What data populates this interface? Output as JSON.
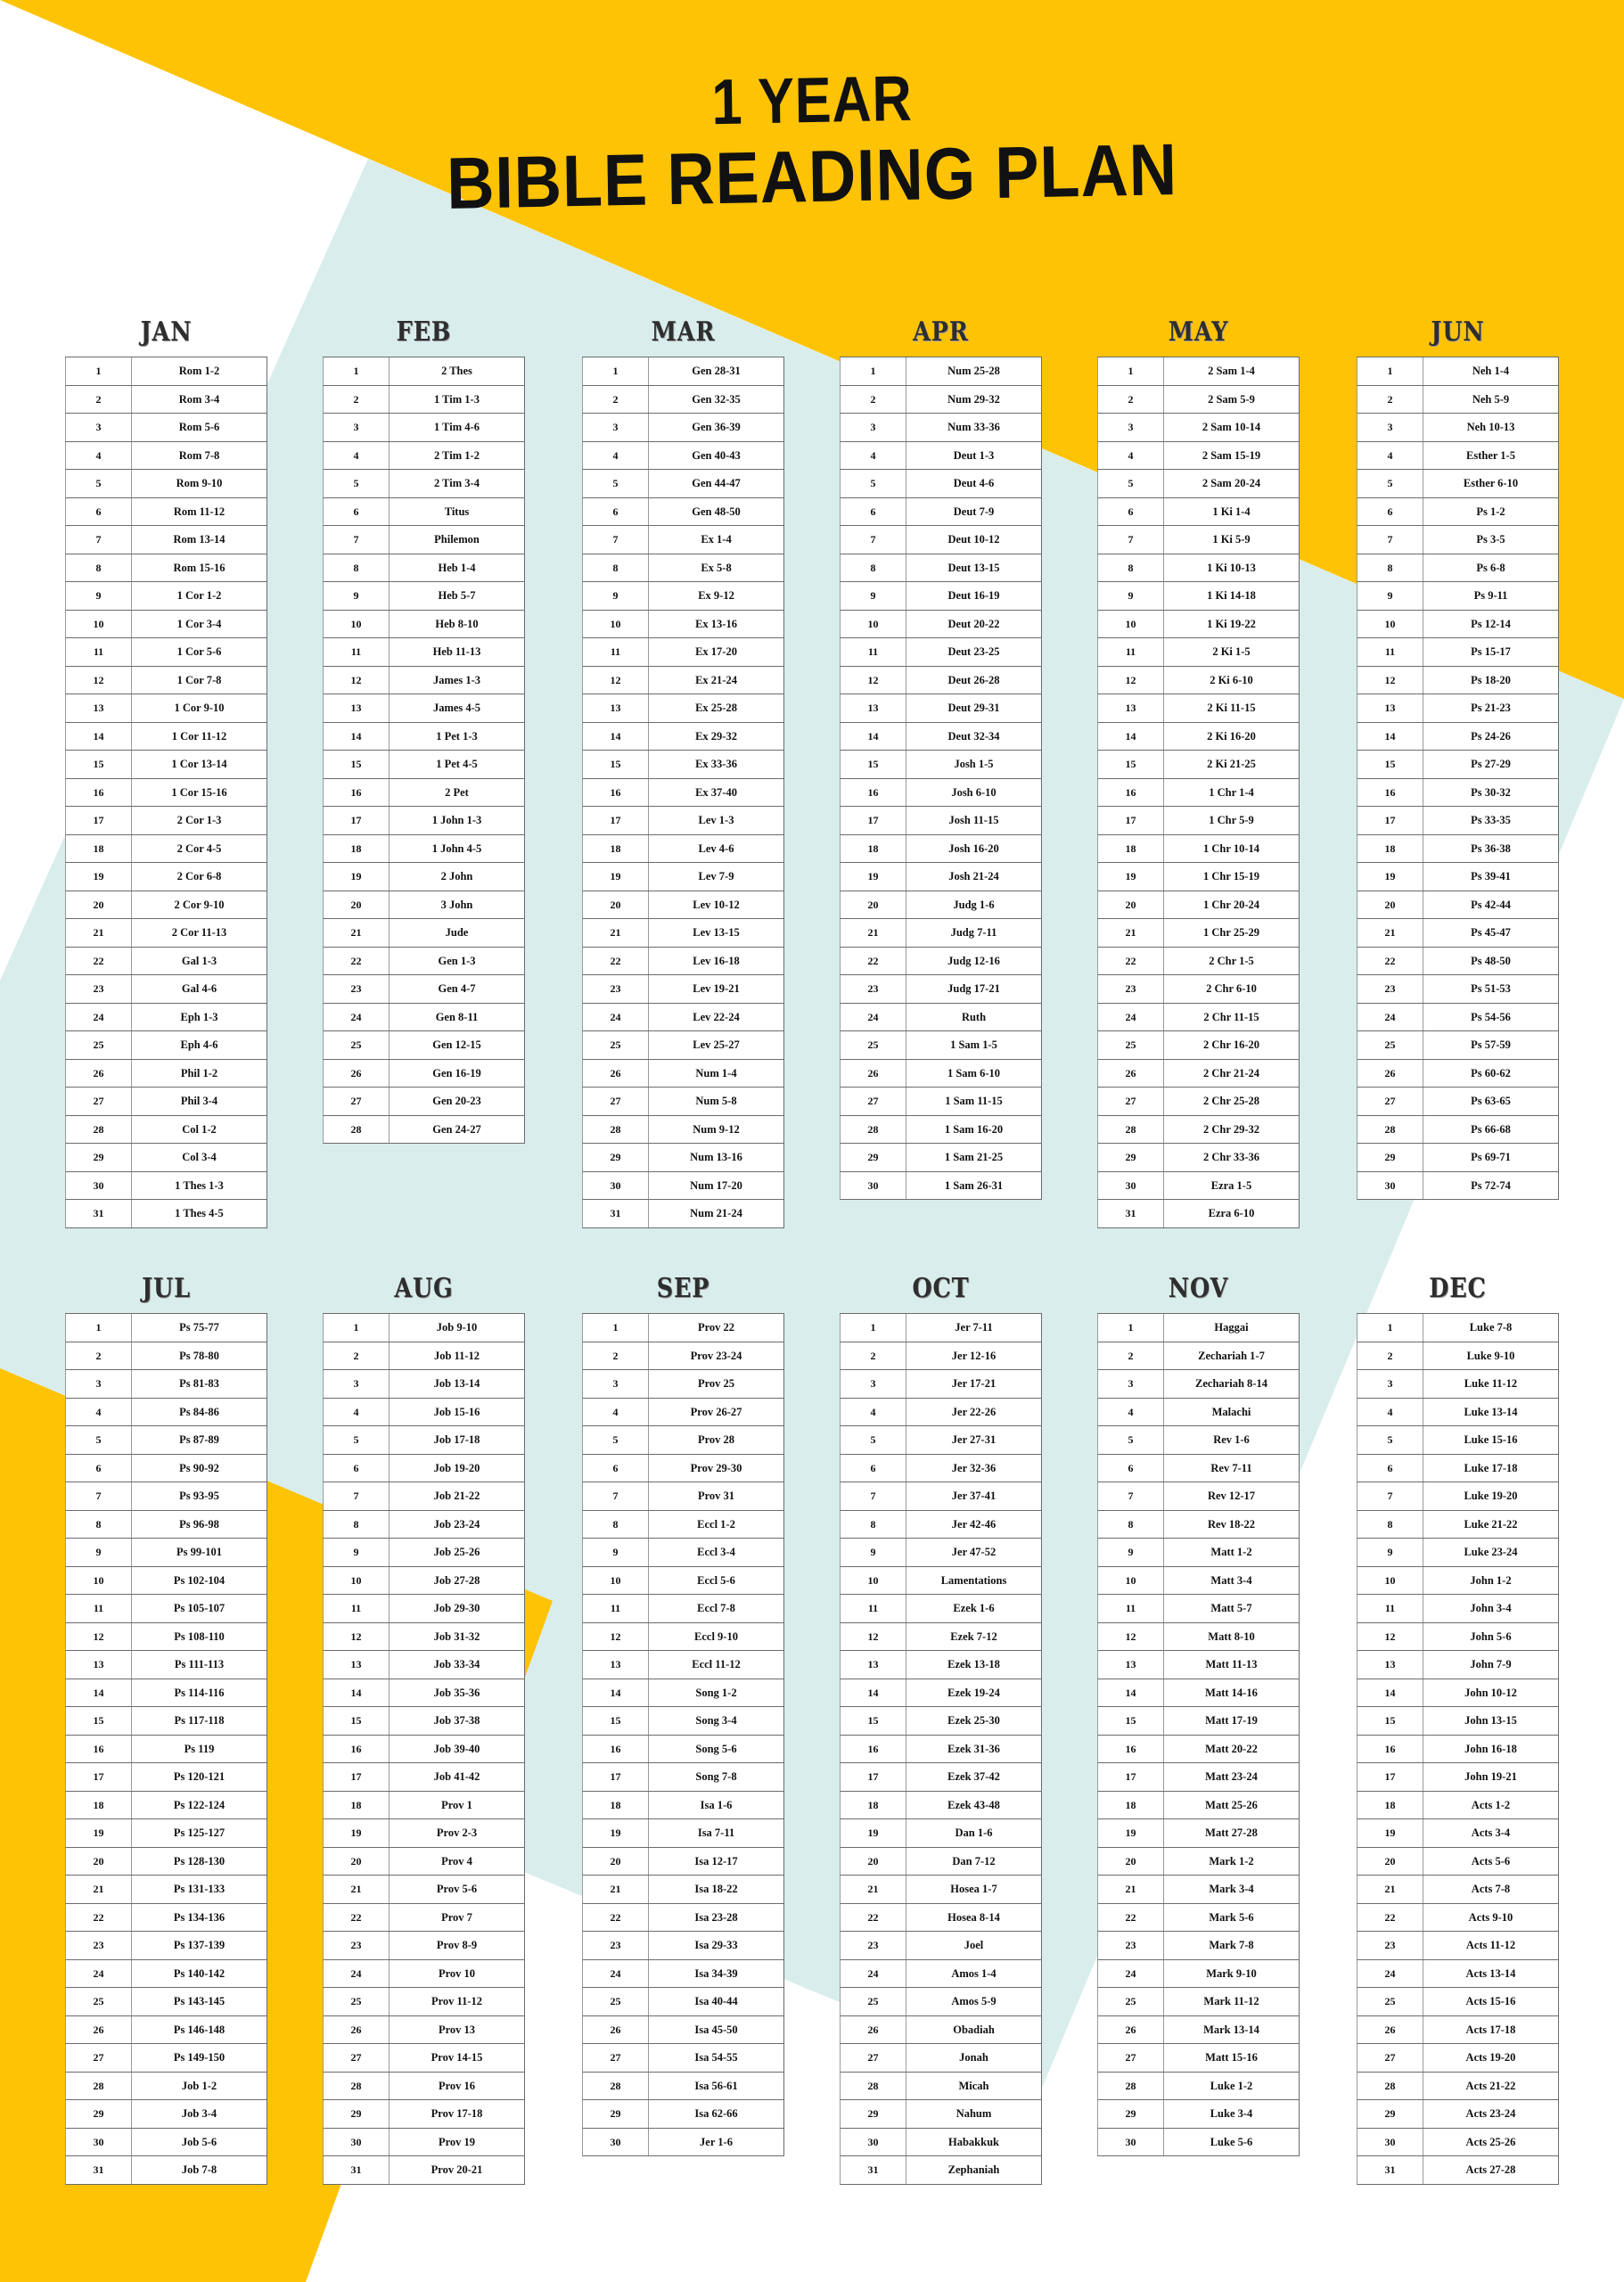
{
  "colors": {
    "yellow": "#FFC305",
    "teal": "#D9EEEC",
    "white": "#FFFFFF",
    "text": "#111111"
  },
  "title": {
    "line1": "1 YEAR",
    "line2": "BIBLE READING PLAN"
  },
  "months": [
    {
      "name": "JAN",
      "readings": [
        "Rom 1-2",
        "Rom 3-4",
        "Rom 5-6",
        "Rom 7-8",
        "Rom 9-10",
        "Rom 11-12",
        "Rom 13-14",
        "Rom 15-16",
        "1 Cor 1-2",
        "1 Cor 3-4",
        "1 Cor 5-6",
        "1 Cor 7-8",
        "1 Cor 9-10",
        "1 Cor 11-12",
        "1 Cor 13-14",
        "1 Cor 15-16",
        "2 Cor 1-3",
        "2 Cor 4-5",
        "2 Cor 6-8",
        "2 Cor 9-10",
        "2 Cor 11-13",
        "Gal 1-3",
        "Gal 4-6",
        "Eph 1-3",
        "Eph 4-6",
        "Phil 1-2",
        "Phil 3-4",
        "Col 1-2",
        "Col 3-4",
        "1 Thes 1-3",
        "1 Thes 4-5"
      ]
    },
    {
      "name": "FEB",
      "readings": [
        "2 Thes",
        "1 Tim 1-3",
        "1 Tim 4-6",
        "2 Tim 1-2",
        "2 Tim 3-4",
        "Titus",
        "Philemon",
        "Heb 1-4",
        "Heb 5-7",
        "Heb 8-10",
        "Heb 11-13",
        "James 1-3",
        "James 4-5",
        "1 Pet 1-3",
        "1 Pet 4-5",
        "2 Pet",
        "1 John 1-3",
        "1 John 4-5",
        "2 John",
        "3 John",
        "Jude",
        "Gen 1-3",
        "Gen 4-7",
        "Gen 8-11",
        "Gen 12-15",
        "Gen 16-19",
        "Gen 20-23",
        "Gen 24-27"
      ]
    },
    {
      "name": "MAR",
      "readings": [
        "Gen 28-31",
        "Gen 32-35",
        "Gen 36-39",
        "Gen 40-43",
        "Gen 44-47",
        "Gen 48-50",
        "Ex 1-4",
        "Ex 5-8",
        "Ex 9-12",
        "Ex 13-16",
        "Ex 17-20",
        "Ex 21-24",
        "Ex 25-28",
        "Ex 29-32",
        "Ex 33-36",
        "Ex 37-40",
        "Lev 1-3",
        "Lev 4-6",
        "Lev 7-9",
        "Lev 10-12",
        "Lev 13-15",
        "Lev 16-18",
        "Lev 19-21",
        "Lev 22-24",
        "Lev 25-27",
        "Num 1-4",
        "Num 5-8",
        "Num 9-12",
        "Num 13-16",
        "Num 17-20",
        "Num 21-24"
      ]
    },
    {
      "name": "APR",
      "readings": [
        "Num 25-28",
        "Num 29-32",
        "Num 33-36",
        "Deut 1-3",
        "Deut 4-6",
        "Deut 7-9",
        "Deut 10-12",
        "Deut 13-15",
        "Deut 16-19",
        "Deut 20-22",
        "Deut 23-25",
        "Deut 26-28",
        "Deut 29-31",
        "Deut 32-34",
        "Josh 1-5",
        "Josh 6-10",
        "Josh 11-15",
        "Josh 16-20",
        "Josh 21-24",
        "Judg 1-6",
        "Judg 7-11",
        "Judg 12-16",
        "Judg 17-21",
        "Ruth",
        "1 Sam 1-5",
        "1 Sam 6-10",
        "1 Sam 11-15",
        "1 Sam 16-20",
        "1 Sam 21-25",
        "1 Sam 26-31"
      ]
    },
    {
      "name": "MAY",
      "readings": [
        "2 Sam 1-4",
        "2 Sam 5-9",
        "2 Sam 10-14",
        "2 Sam 15-19",
        "2 Sam 20-24",
        "1 Ki 1-4",
        "1 Ki 5-9",
        "1 Ki 10-13",
        "1 Ki 14-18",
        "1 Ki 19-22",
        "2 Ki 1-5",
        "2 Ki 6-10",
        "2 Ki 11-15",
        "2 Ki 16-20",
        "2 Ki 21-25",
        "1 Chr 1-4",
        "1 Chr 5-9",
        "1 Chr 10-14",
        "1 Chr 15-19",
        "1 Chr 20-24",
        "1 Chr 25-29",
        "2 Chr 1-5",
        "2 Chr 6-10",
        "2 Chr 11-15",
        "2 Chr 16-20",
        "2 Chr 21-24",
        "2 Chr 25-28",
        "2 Chr 29-32",
        "2 Chr 33-36",
        "Ezra 1-5",
        "Ezra 6-10"
      ]
    },
    {
      "name": "JUN",
      "readings": [
        "Neh 1-4",
        "Neh 5-9",
        "Neh 10-13",
        "Esther 1-5",
        "Esther 6-10",
        "Ps 1-2",
        "Ps 3-5",
        "Ps 6-8",
        "Ps 9-11",
        "Ps 12-14",
        "Ps 15-17",
        "Ps 18-20",
        "Ps 21-23",
        "Ps 24-26",
        "Ps 27-29",
        "Ps 30-32",
        "Ps 33-35",
        "Ps 36-38",
        "Ps 39-41",
        "Ps 42-44",
        "Ps 45-47",
        "Ps 48-50",
        "Ps 51-53",
        "Ps 54-56",
        "Ps 57-59",
        "Ps 60-62",
        "Ps 63-65",
        "Ps 66-68",
        "Ps 69-71",
        "Ps 72-74"
      ]
    },
    {
      "name": "JUL",
      "readings": [
        "Ps 75-77",
        "Ps 78-80",
        "Ps 81-83",
        "Ps 84-86",
        "Ps 87-89",
        "Ps 90-92",
        "Ps 93-95",
        "Ps 96-98",
        "Ps 99-101",
        "Ps 102-104",
        "Ps 105-107",
        "Ps 108-110",
        "Ps 111-113",
        "Ps 114-116",
        "Ps 117-118",
        "Ps 119",
        "Ps 120-121",
        "Ps 122-124",
        "Ps 125-127",
        "Ps 128-130",
        "Ps 131-133",
        "Ps 134-136",
        "Ps 137-139",
        "Ps 140-142",
        "Ps 143-145",
        "Ps 146-148",
        "Ps 149-150",
        "Job 1-2",
        "Job 3-4",
        "Job 5-6",
        "Job 7-8"
      ]
    },
    {
      "name": "AUG",
      "readings": [
        "Job 9-10",
        "Job 11-12",
        "Job 13-14",
        "Job 15-16",
        "Job 17-18",
        "Job 19-20",
        "Job 21-22",
        "Job 23-24",
        "Job 25-26",
        "Job 27-28",
        "Job 29-30",
        "Job 31-32",
        "Job 33-34",
        "Job 35-36",
        "Job 37-38",
        "Job 39-40",
        "Job 41-42",
        "Prov 1",
        "Prov 2-3",
        "Prov 4",
        "Prov 5-6",
        "Prov 7",
        "Prov 8-9",
        "Prov 10",
        "Prov 11-12",
        "Prov 13",
        "Prov 14-15",
        "Prov 16",
        "Prov 17-18",
        "Prov 19",
        "Prov 20-21"
      ]
    },
    {
      "name": "SEP",
      "readings": [
        "Prov 22",
        "Prov 23-24",
        "Prov 25",
        "Prov 26-27",
        "Prov 28",
        "Prov 29-30",
        "Prov 31",
        "Eccl 1-2",
        "Eccl 3-4",
        "Eccl 5-6",
        "Eccl 7-8",
        "Eccl 9-10",
        "Eccl 11-12",
        "Song 1-2",
        "Song 3-4",
        "Song 5-6",
        "Song 7-8",
        "Isa 1-6",
        "Isa 7-11",
        "Isa 12-17",
        "Isa 18-22",
        "Isa 23-28",
        "Isa 29-33",
        "Isa 34-39",
        "Isa 40-44",
        "Isa 45-50",
        "Isa 54-55",
        "Isa 56-61",
        "Isa 62-66",
        "Jer 1-6"
      ]
    },
    {
      "name": "OCT",
      "readings": [
        "Jer 7-11",
        "Jer 12-16",
        "Jer 17-21",
        "Jer 22-26",
        "Jer 27-31",
        "Jer 32-36",
        "Jer 37-41",
        "Jer 42-46",
        "Jer 47-52",
        "Lamentations",
        "Ezek 1-6",
        "Ezek 7-12",
        "Ezek 13-18",
        "Ezek 19-24",
        "Ezek 25-30",
        "Ezek 31-36",
        "Ezek 37-42",
        "Ezek 43-48",
        "Dan 1-6",
        "Dan 7-12",
        "Hosea 1-7",
        "Hosea 8-14",
        "Joel",
        "Amos 1-4",
        "Amos 5-9",
        "Obadiah",
        "Jonah",
        "Micah",
        "Nahum",
        "Habakkuk",
        "Zephaniah"
      ]
    },
    {
      "name": "NOV",
      "readings": [
        "Haggai",
        "Zechariah 1-7",
        "Zechariah 8-14",
        "Malachi",
        "Rev 1-6",
        "Rev 7-11",
        "Rev 12-17",
        "Rev 18-22",
        "Matt 1-2",
        "Matt 3-4",
        "Matt 5-7",
        "Matt 8-10",
        "Matt 11-13",
        "Matt 14-16",
        "Matt 17-19",
        "Matt 20-22",
        "Matt 23-24",
        "Matt 25-26",
        "Matt 27-28",
        "Mark 1-2",
        "Mark 3-4",
        "Mark 5-6",
        "Mark 7-8",
        "Mark 9-10",
        "Mark 11-12",
        "Mark 13-14",
        "Matt 15-16",
        "Luke 1-2",
        "Luke 3-4",
        "Luke 5-6"
      ]
    },
    {
      "name": "DEC",
      "readings": [
        "Luke 7-8",
        "Luke 9-10",
        "Luke 11-12",
        "Luke 13-14",
        "Luke 15-16",
        "Luke 17-18",
        "Luke 19-20",
        "Luke 21-22",
        "Luke 23-24",
        "John 1-2",
        "John 3-4",
        "John 5-6",
        "John 7-9",
        "John 10-12",
        "John 13-15",
        "John 16-18",
        "John 19-21",
        "Acts 1-2",
        "Acts 3-4",
        "Acts 5-6",
        "Acts 7-8",
        "Acts 9-10",
        "Acts 11-12",
        "Acts 13-14",
        "Acts 15-16",
        "Acts 17-18",
        "Acts 19-20",
        "Acts 21-22",
        "Acts 23-24",
        "Acts 25-26",
        "Acts 27-28"
      ]
    }
  ]
}
